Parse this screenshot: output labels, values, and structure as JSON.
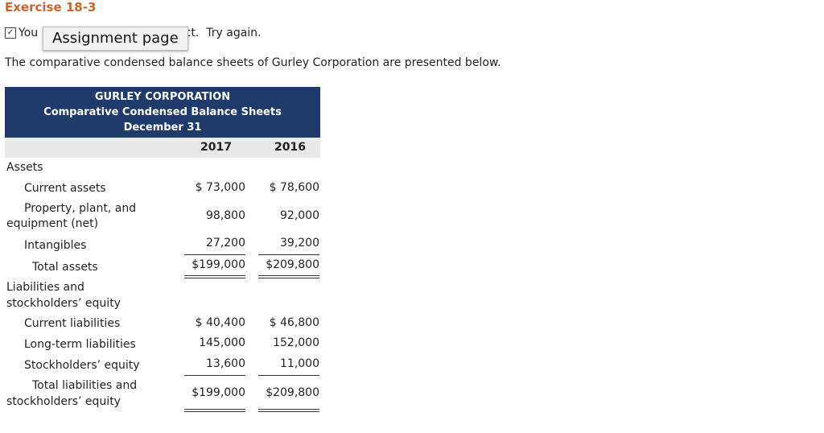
{
  "exercise_title": "Exercise 18-3",
  "status": {
    "before": "You",
    "after": "rrect.  Try again.",
    "tooltip": "Assignment page"
  },
  "intro": "The comparative condensed balance sheets of Gurley Corporation are presented below.",
  "table": {
    "header": {
      "company": "GURLEY CORPORATION",
      "title": "Comparative Condensed Balance Sheets",
      "date": "December 31"
    },
    "years": [
      "2017",
      "2016"
    ],
    "assets_label": "Assets",
    "liab_label": [
      "Liabilities and",
      "stockholders’ equity"
    ],
    "rows": {
      "current_assets": {
        "label": "Current assets",
        "v2017": "$ 73,000",
        "v2016": "$ 78,600"
      },
      "ppe": {
        "label1": "Property, plant, and",
        "label2": "equipment (net)",
        "v2017": "98,800",
        "v2016": "92,000"
      },
      "intangibles": {
        "label": "Intangibles",
        "v2017": "27,200",
        "v2016": "39,200"
      },
      "total_assets": {
        "label": "Total assets",
        "v2017": "$199,000",
        "v2016": "$209,800"
      },
      "current_liab": {
        "label": "Current liabilities",
        "v2017": "$ 40,400",
        "v2016": "$ 46,800"
      },
      "longterm_liab": {
        "label": "Long-term liabilities",
        "v2017": "145,000",
        "v2016": "152,000"
      },
      "se": {
        "label": "Stockholders’ equity",
        "v2017": "13,600",
        "v2016": "11,000"
      },
      "total_le": {
        "label1": "Total liabilities and",
        "label2": "stockholders’ equity",
        "v2017": "$199,000",
        "v2016": "$209,800"
      }
    }
  }
}
